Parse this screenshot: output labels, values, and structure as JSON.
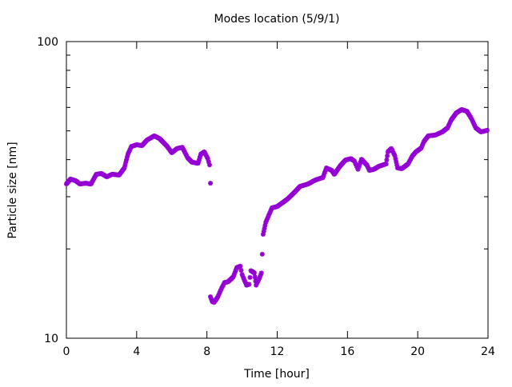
{
  "chart_data": {
    "type": "scatter",
    "title": "Modes location (5/9/1)",
    "xlabel": "Time [hour]",
    "ylabel": "Particle size [nm]",
    "xlim": [
      0,
      24
    ],
    "ylim": [
      10,
      100
    ],
    "yscale": "log",
    "xticks": [
      "0",
      "4",
      "8",
      "12",
      "16",
      "20",
      "24"
    ],
    "yticks": [
      "10",
      "100"
    ],
    "grid": false,
    "marker_color": "#9400d3",
    "series": [
      {
        "name": "segment-1",
        "points": [
          [
            0,
            33.1
          ],
          [
            0.23,
            34.4
          ],
          [
            0.55,
            33.9
          ],
          [
            0.77,
            33.1
          ],
          [
            1.1,
            33.3
          ],
          [
            1.4,
            33.1
          ],
          [
            1.7,
            35.7
          ],
          [
            2.0,
            35.9
          ],
          [
            2.3,
            35.0
          ],
          [
            2.6,
            35.7
          ],
          [
            3.0,
            35.5
          ],
          [
            3.3,
            37.5
          ],
          [
            3.5,
            41.7
          ],
          [
            3.7,
            44.3
          ],
          [
            4.0,
            44.9
          ],
          [
            4.3,
            44.6
          ],
          [
            4.6,
            46.6
          ],
          [
            5.0,
            48.1
          ],
          [
            5.3,
            47.1
          ],
          [
            5.7,
            44.6
          ],
          [
            6.0,
            42.2
          ],
          [
            6.3,
            43.6
          ],
          [
            6.6,
            44.0
          ],
          [
            6.9,
            40.6
          ],
          [
            7.15,
            39.2
          ],
          [
            7.5,
            38.9
          ],
          [
            7.65,
            41.7
          ],
          [
            7.85,
            42.5
          ],
          [
            8.05,
            40.3
          ],
          [
            8.15,
            38.4
          ],
          [
            8.2,
            33.3
          ]
        ]
      },
      {
        "name": "segment-2",
        "points": [
          [
            8.2,
            13.8
          ],
          [
            8.3,
            13.3
          ],
          [
            8.4,
            13.2
          ],
          [
            8.6,
            13.7
          ],
          [
            8.8,
            14.6
          ],
          [
            9.0,
            15.4
          ],
          [
            9.2,
            15.5
          ],
          [
            9.5,
            16.1
          ],
          [
            9.7,
            17.3
          ],
          [
            9.9,
            17.5
          ],
          [
            10.0,
            16.4
          ],
          [
            10.25,
            15.1
          ],
          [
            10.4,
            15.2
          ],
          [
            10.5,
            16.9
          ],
          [
            10.7,
            16.6
          ],
          [
            10.8,
            15.1
          ],
          [
            11.0,
            16.0
          ],
          [
            11.1,
            16.6
          ],
          [
            11.15,
            19.2
          ],
          [
            11.2,
            22.4
          ],
          [
            11.35,
            24.6
          ],
          [
            11.5,
            25.8
          ],
          [
            11.7,
            27.5
          ],
          [
            12.0,
            27.8
          ],
          [
            12.4,
            28.9
          ],
          [
            12.6,
            29.5
          ],
          [
            13.0,
            31.1
          ],
          [
            13.3,
            32.5
          ],
          [
            13.75,
            33.1
          ],
          [
            14.2,
            34.2
          ],
          [
            14.6,
            34.8
          ],
          [
            14.8,
            37.5
          ],
          [
            15.1,
            36.8
          ],
          [
            15.25,
            35.7
          ],
          [
            15.6,
            38.2
          ],
          [
            15.9,
            39.9
          ],
          [
            16.2,
            40.3
          ],
          [
            16.4,
            39.5
          ],
          [
            16.6,
            37.1
          ],
          [
            16.8,
            40.1
          ],
          [
            17.1,
            38.4
          ],
          [
            17.25,
            36.8
          ],
          [
            17.5,
            37.1
          ],
          [
            17.8,
            38.0
          ],
          [
            18.2,
            38.7
          ],
          [
            18.3,
            42.5
          ],
          [
            18.5,
            43.6
          ],
          [
            18.7,
            41.2
          ],
          [
            18.85,
            37.5
          ],
          [
            19.1,
            37.3
          ],
          [
            19.45,
            38.7
          ],
          [
            19.7,
            41.2
          ],
          [
            19.9,
            42.5
          ],
          [
            20.2,
            43.8
          ],
          [
            20.35,
            46.0
          ],
          [
            20.6,
            48.1
          ],
          [
            21.0,
            48.4
          ],
          [
            21.4,
            49.6
          ],
          [
            21.7,
            51.2
          ],
          [
            21.9,
            54.4
          ],
          [
            22.2,
            57.5
          ],
          [
            22.5,
            59.0
          ],
          [
            22.8,
            58.2
          ],
          [
            23.05,
            55.1
          ],
          [
            23.3,
            51.2
          ],
          [
            23.6,
            49.6
          ],
          [
            23.95,
            50.2
          ]
        ]
      }
    ]
  }
}
